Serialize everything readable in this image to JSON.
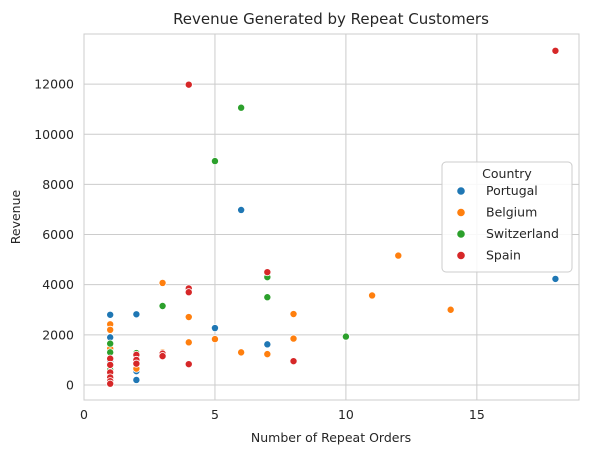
{
  "chart_data": {
    "type": "scatter",
    "title": "Revenue Generated by Repeat Customers",
    "xlabel": "Number of Repeat Orders",
    "ylabel": "Revenue",
    "xlim": [
      0,
      18.9
    ],
    "ylim": [
      -600,
      14000
    ],
    "xticks": [
      0,
      5,
      10,
      15
    ],
    "yticks": [
      0,
      2000,
      4000,
      6000,
      8000,
      10000,
      12000
    ],
    "grid": true,
    "legend": {
      "title": "Country",
      "placement": "center-right"
    },
    "series": [
      {
        "name": "Portugal",
        "color": "#1f77b4",
        "points": [
          [
            1,
            2800
          ],
          [
            1,
            1900
          ],
          [
            1,
            950
          ],
          [
            1,
            700
          ],
          [
            1,
            500
          ],
          [
            1,
            350
          ],
          [
            1,
            200
          ],
          [
            1,
            100
          ],
          [
            2,
            2820
          ],
          [
            2,
            550
          ],
          [
            2,
            200
          ],
          [
            5,
            2270
          ],
          [
            6,
            6980
          ],
          [
            7,
            1620
          ],
          [
            18,
            4230
          ]
        ]
      },
      {
        "name": "Belgium",
        "color": "#ff7f0e",
        "points": [
          [
            1,
            2420
          ],
          [
            1,
            2200
          ],
          [
            1,
            1450
          ],
          [
            1,
            800
          ],
          [
            2,
            1000
          ],
          [
            2,
            650
          ],
          [
            3,
            4070
          ],
          [
            3,
            1300
          ],
          [
            3,
            1250
          ],
          [
            4,
            2710
          ],
          [
            4,
            1700
          ],
          [
            5,
            1830
          ],
          [
            6,
            1300
          ],
          [
            7,
            1230
          ],
          [
            8,
            2830
          ],
          [
            8,
            1850
          ],
          [
            11,
            3570
          ],
          [
            12,
            5160
          ],
          [
            14,
            3000
          ]
        ]
      },
      {
        "name": "Switzerland",
        "color": "#2ca02c",
        "points": [
          [
            1,
            1650
          ],
          [
            1,
            1300
          ],
          [
            1,
            600
          ],
          [
            2,
            1270
          ],
          [
            3,
            3150
          ],
          [
            5,
            8930
          ],
          [
            6,
            11060
          ],
          [
            7,
            4300
          ],
          [
            7,
            3500
          ],
          [
            10,
            1930
          ]
        ]
      },
      {
        "name": "Spain",
        "color": "#d62728",
        "points": [
          [
            1,
            1050
          ],
          [
            1,
            800
          ],
          [
            1,
            500
          ],
          [
            1,
            300
          ],
          [
            1,
            150
          ],
          [
            1,
            50
          ],
          [
            2,
            1200
          ],
          [
            2,
            1000
          ],
          [
            2,
            850
          ],
          [
            3,
            1250
          ],
          [
            3,
            1150
          ],
          [
            4,
            11980
          ],
          [
            4,
            3850
          ],
          [
            4,
            3700
          ],
          [
            4,
            830
          ],
          [
            7,
            4500
          ],
          [
            8,
            950
          ],
          [
            18,
            13330
          ]
        ]
      }
    ]
  }
}
